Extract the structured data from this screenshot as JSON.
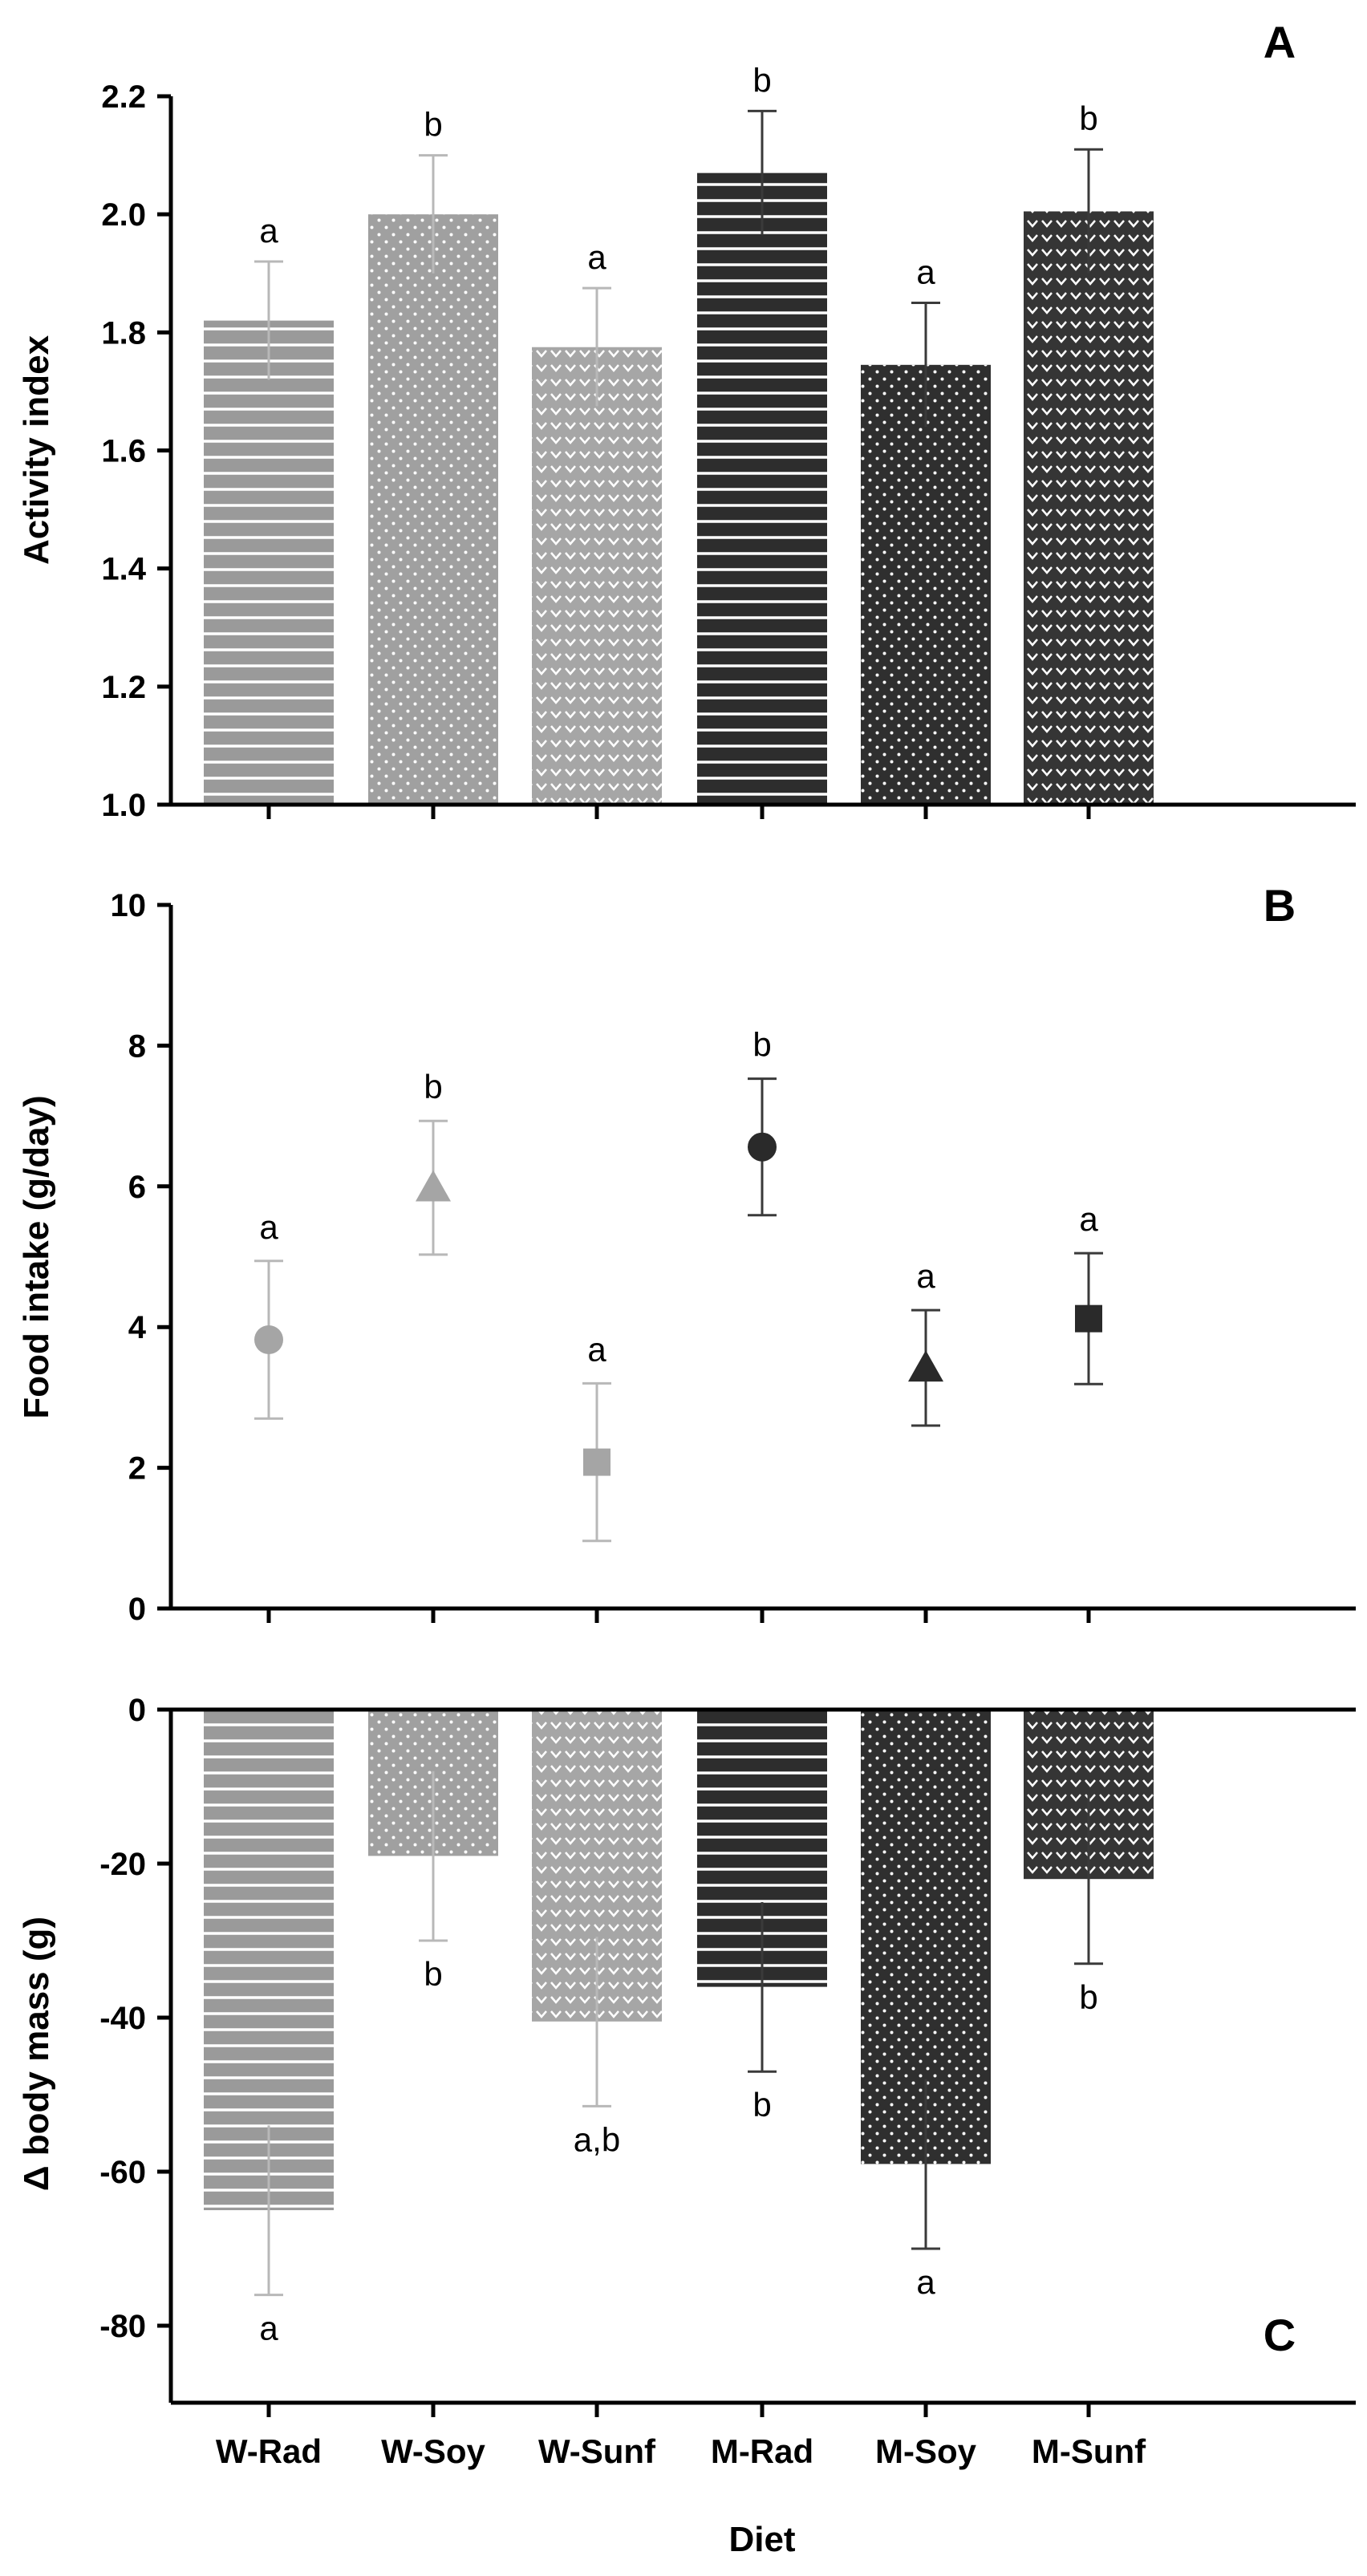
{
  "chart_data": [
    {
      "panel": "A",
      "type": "bar",
      "ylabel": "Activity index",
      "ylim": [
        1.0,
        2.2
      ],
      "yticks": [
        "1.0",
        "1.2",
        "1.4",
        "1.6",
        "1.8",
        "2.0",
        "2.2"
      ],
      "categories": [
        "W-Rad",
        "W-Soy",
        "W-Sunf",
        "M-Rad",
        "M-Soy",
        "M-Sunf"
      ],
      "values": [
        1.82,
        2.0,
        1.775,
        2.07,
        1.745,
        2.005
      ],
      "errors": [
        0.1,
        0.1,
        0.1,
        0.105,
        0.105,
        0.105
      ],
      "significance": [
        "a",
        "b",
        "a",
        "b",
        "a",
        "b"
      ]
    },
    {
      "panel": "B",
      "type": "scatter",
      "ylabel": "Food intake (g/day)",
      "ylim": [
        0,
        10
      ],
      "yticks": [
        "0",
        "2",
        "4",
        "6",
        "8",
        "10"
      ],
      "categories": [
        "W-Rad",
        "W-Soy",
        "W-Sunf",
        "M-Rad",
        "M-Soy",
        "M-Sunf"
      ],
      "values": [
        3.82,
        5.98,
        2.08,
        6.56,
        3.42,
        4.12
      ],
      "errors": [
        1.12,
        0.95,
        1.12,
        0.97,
        0.82,
        0.93
      ],
      "significance": [
        "a",
        "b",
        "a",
        "b",
        "a",
        "a"
      ]
    },
    {
      "panel": "C",
      "type": "bar",
      "ylabel": "Δ  body mass (g)",
      "ylim": [
        -90,
        0
      ],
      "yticks": [
        "-80",
        "-60",
        "-40",
        "-20",
        "0"
      ],
      "categories": [
        "W-Rad",
        "W-Soy",
        "W-Sunf",
        "M-Rad",
        "M-Soy",
        "M-Sunf"
      ],
      "values": [
        -65,
        -19,
        -40.5,
        -36,
        -59,
        -22
      ],
      "errors": [
        11,
        11,
        11,
        11,
        11,
        11
      ],
      "significance": [
        "a",
        "b",
        "a,b",
        "b",
        "a",
        "b"
      ],
      "xlabel": "Diet"
    }
  ],
  "series_style": [
    {
      "name": "W-Rad",
      "fill": "#9a9a9a",
      "pattern": "stripes",
      "marker": "circle",
      "marker_color": "#a5a5a5"
    },
    {
      "name": "W-Soy",
      "fill": "#a0a0a0",
      "pattern": "dots",
      "marker": "triangle",
      "marker_color": "#a5a5a5"
    },
    {
      "name": "W-Sunf",
      "fill": "#a6a6a6",
      "pattern": "chevrons",
      "marker": "square",
      "marker_color": "#a5a5a5"
    },
    {
      "name": "M-Rad",
      "fill": "#2d2d2d",
      "pattern": "stripes",
      "marker": "circle",
      "marker_color": "#2a2a2a"
    },
    {
      "name": "M-Soy",
      "fill": "#2f2f2f",
      "pattern": "dots",
      "marker": "triangle",
      "marker_color": "#2a2a2a"
    },
    {
      "name": "M-Sunf",
      "fill": "#353535",
      "pattern": "chevrons",
      "marker": "square",
      "marker_color": "#2a2a2a"
    }
  ],
  "error_bar_colors": {
    "light": "#b8b8b8",
    "dark": "#3a3a3a"
  }
}
